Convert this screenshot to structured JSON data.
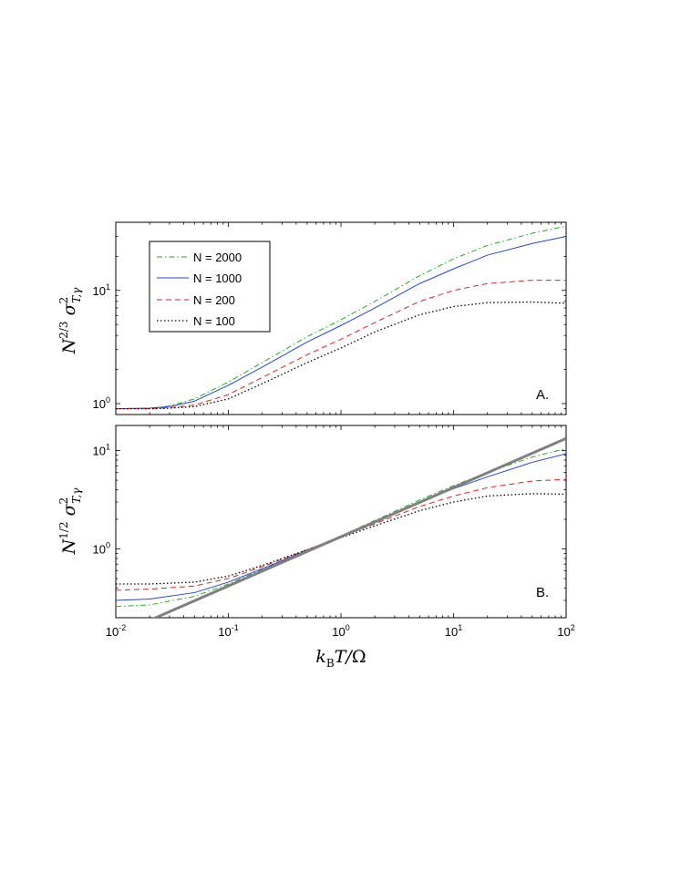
{
  "chart_data": [
    {
      "panel": "A.",
      "type": "line",
      "ylabel": "N^{2/3} σ²_{T,γ}",
      "xlabel": "",
      "xscale": "log",
      "yscale": "log",
      "xlim": [
        0.01,
        100
      ],
      "ylim": [
        0.8,
        40
      ],
      "xticks": [
        "10^{-2}",
        "10^{-1}",
        "10^{0}",
        "10^{1}",
        "10^{2}"
      ],
      "yticks": [
        "10^{0}",
        "10^{1}"
      ],
      "legend_position": "top-left",
      "series": [
        {
          "name": "N = 2000",
          "color": "#22aa22",
          "style": "dash-dot",
          "x": [
            0.01,
            0.02,
            0.03,
            0.05,
            0.1,
            0.2,
            0.5,
            1,
            2,
            5,
            10,
            20,
            50,
            100
          ],
          "y": [
            0.9,
            0.91,
            0.95,
            1.1,
            1.55,
            2.3,
            3.9,
            5.5,
            8.0,
            13.5,
            19.0,
            25.0,
            32.0,
            37.0
          ]
        },
        {
          "name": "N = 1000",
          "color": "#2244dd",
          "style": "solid",
          "x": [
            0.01,
            0.02,
            0.03,
            0.05,
            0.1,
            0.2,
            0.5,
            1,
            2,
            5,
            10,
            20,
            50,
            100
          ],
          "y": [
            0.9,
            0.91,
            0.94,
            1.05,
            1.45,
            2.1,
            3.5,
            4.9,
            7.0,
            11.5,
            15.5,
            20.5,
            26.0,
            30.0
          ]
        },
        {
          "name": "N = 200",
          "color": "#dd2222",
          "style": "dashed",
          "x": [
            0.01,
            0.02,
            0.03,
            0.05,
            0.1,
            0.2,
            0.5,
            1,
            2,
            5,
            10,
            20,
            50,
            100
          ],
          "y": [
            0.9,
            0.9,
            0.92,
            0.97,
            1.2,
            1.7,
            2.7,
            3.7,
            5.2,
            8.0,
            10.0,
            11.5,
            12.3,
            12.3
          ]
        },
        {
          "name": "N = 100",
          "color": "#000000",
          "style": "dotted",
          "x": [
            0.01,
            0.02,
            0.03,
            0.05,
            0.1,
            0.2,
            0.5,
            1,
            2,
            5,
            10,
            20,
            50,
            100
          ],
          "y": [
            0.9,
            0.9,
            0.91,
            0.94,
            1.1,
            1.5,
            2.3,
            3.1,
            4.3,
            6.1,
            7.2,
            7.8,
            7.9,
            7.7
          ]
        }
      ]
    },
    {
      "panel": "B.",
      "type": "line",
      "ylabel": "N^{1/2} σ²_{T,γ}",
      "xlabel": "k_B T/Ω",
      "xscale": "log",
      "yscale": "log",
      "xlim": [
        0.01,
        100
      ],
      "ylim": [
        0.2,
        18
      ],
      "xticks": [
        "10^{-2}",
        "10^{-1}",
        "10^{0}",
        "10^{1}",
        "10^{2}"
      ],
      "yticks": [
        "10^{0}",
        "10^{1}"
      ],
      "series": [
        {
          "name": "N = 2000",
          "color": "#22aa22",
          "style": "dash-dot",
          "x": [
            0.01,
            0.02,
            0.05,
            0.1,
            0.2,
            0.5,
            1,
            2,
            5,
            10,
            20,
            50,
            100
          ],
          "y": [
            0.26,
            0.27,
            0.33,
            0.44,
            0.62,
            0.97,
            1.36,
            1.95,
            3.15,
            4.4,
            6.0,
            8.6,
            10.5
          ]
        },
        {
          "name": "N = 1000",
          "color": "#2244dd",
          "style": "solid",
          "x": [
            0.01,
            0.02,
            0.05,
            0.1,
            0.2,
            0.5,
            1,
            2,
            5,
            10,
            20,
            50,
            100
          ],
          "y": [
            0.3,
            0.31,
            0.36,
            0.46,
            0.63,
            0.97,
            1.35,
            1.9,
            3.0,
            4.1,
            5.4,
            7.6,
            9.3
          ]
        },
        {
          "name": "N = 200",
          "color": "#dd2222",
          "style": "dashed",
          "x": [
            0.01,
            0.02,
            0.05,
            0.1,
            0.2,
            0.5,
            1,
            2,
            5,
            10,
            20,
            50,
            100
          ],
          "y": [
            0.38,
            0.39,
            0.42,
            0.5,
            0.66,
            0.98,
            1.33,
            1.8,
            2.7,
            3.45,
            4.2,
            4.9,
            5.1
          ]
        },
        {
          "name": "N = 100",
          "color": "#000000",
          "style": "dotted",
          "x": [
            0.01,
            0.02,
            0.05,
            0.1,
            0.2,
            0.5,
            1,
            2,
            5,
            10,
            20,
            50,
            100
          ],
          "y": [
            0.44,
            0.44,
            0.46,
            0.53,
            0.68,
            0.98,
            1.3,
            1.72,
            2.45,
            3.0,
            3.45,
            3.65,
            3.6
          ]
        },
        {
          "name": "",
          "color": "#808080",
          "style": "thick-solid",
          "x": [
            0.01,
            100
          ],
          "y": [
            0.133,
            13.3
          ]
        }
      ]
    }
  ]
}
